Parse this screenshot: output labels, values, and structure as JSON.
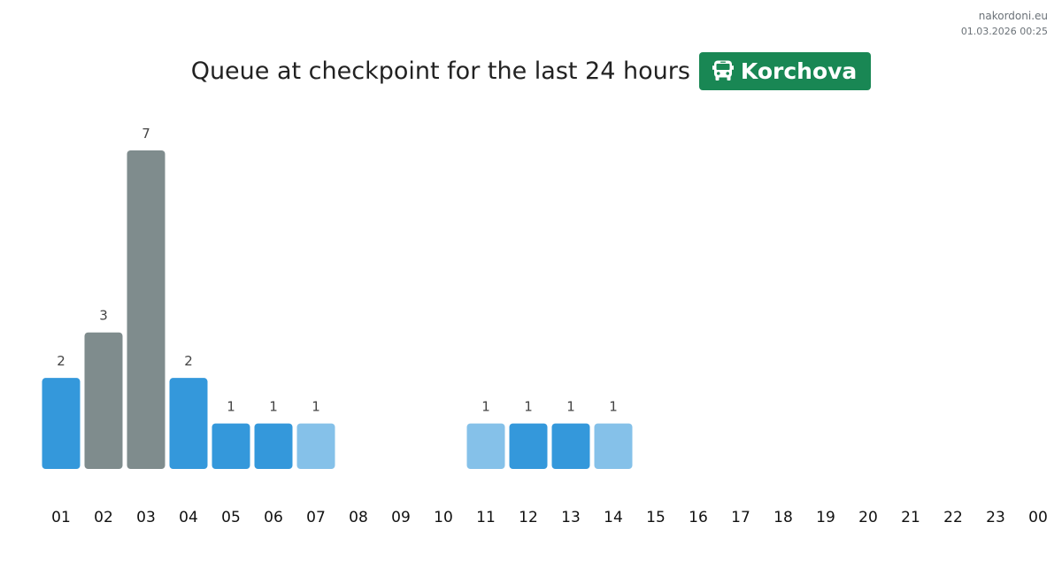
{
  "site": {
    "name": "nakordoni.eu",
    "timestamp": "01.03.2026 00:25"
  },
  "header": {
    "title": "Queue at checkpoint for the last 24 hours",
    "checkpoint_name": "Korchova",
    "checkpoint_icon": "bus-icon",
    "badge_color": "#198754"
  },
  "colors": {
    "blue": "#3498db",
    "gray": "#7f8c8d",
    "light_blue": "#85c1e9"
  },
  "chart_data": {
    "type": "bar",
    "title": "Queue at checkpoint for the last 24 hours",
    "xlabel": "",
    "ylabel": "",
    "categories": [
      "01",
      "02",
      "03",
      "04",
      "05",
      "06",
      "07",
      "08",
      "09",
      "10",
      "11",
      "12",
      "13",
      "14",
      "15",
      "16",
      "17",
      "18",
      "19",
      "20",
      "21",
      "22",
      "23",
      "00"
    ],
    "values": [
      2,
      3,
      7,
      2,
      1,
      1,
      1,
      null,
      null,
      null,
      1,
      1,
      1,
      1,
      null,
      null,
      null,
      null,
      null,
      null,
      null,
      null,
      null,
      null
    ],
    "bar_colors": [
      "blue",
      "gray",
      "gray",
      "blue",
      "blue",
      "blue",
      "light_blue",
      null,
      null,
      null,
      "light_blue",
      "blue",
      "blue",
      "light_blue",
      null,
      null,
      null,
      null,
      null,
      null,
      null,
      null,
      null,
      null
    ],
    "ylim": [
      0,
      7
    ],
    "grid": false,
    "legend": false
  }
}
